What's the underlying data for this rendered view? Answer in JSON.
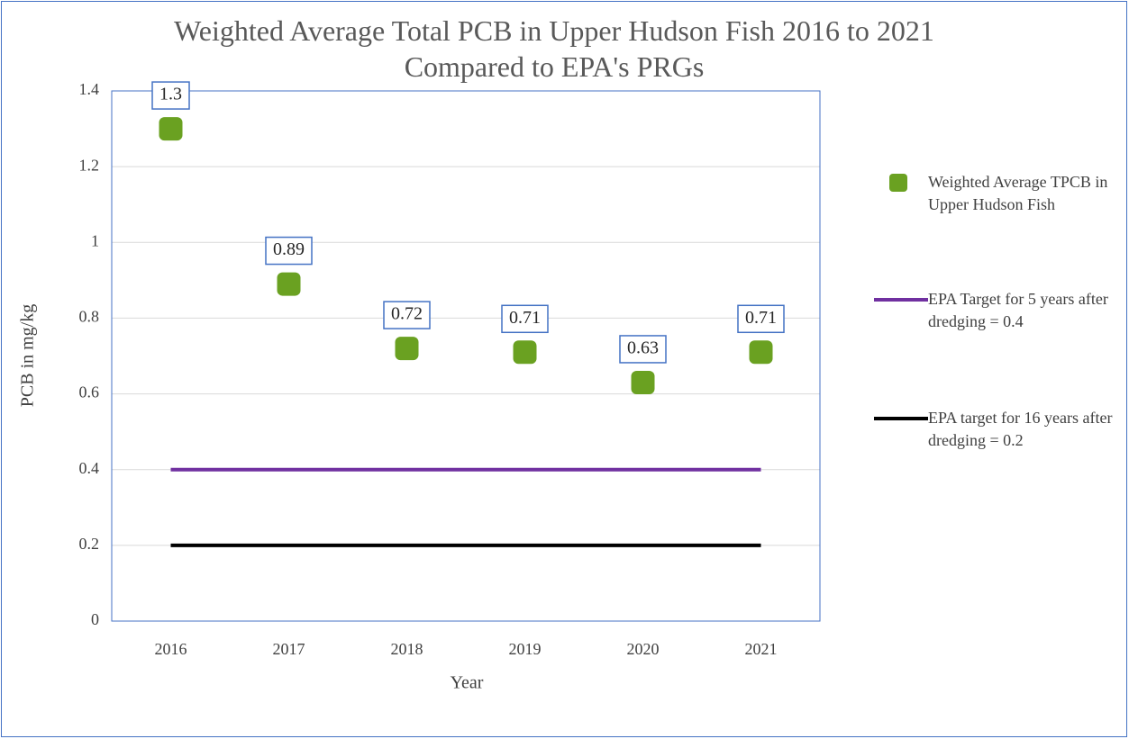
{
  "chart_data": {
    "type": "scatter",
    "title": "Weighted Average Total PCB in Upper Hudson Fish 2016 to 2021 Compared to EPA's PRGs",
    "x_label": "Year",
    "y_label": "PCB in mg/kg",
    "categories": [
      "2016",
      "2017",
      "2018",
      "2019",
      "2020",
      "2021"
    ],
    "series": [
      {
        "name": "Weighted Average TPCB in Upper Hudson Fish",
        "type": "scatter",
        "color": "#6aa121",
        "values": [
          1.3,
          0.89,
          0.72,
          0.71,
          0.63,
          0.71
        ]
      },
      {
        "name": "EPA Target for 5 years after dredging = 0.4",
        "type": "line",
        "color": "#7030a0",
        "values": [
          0.4,
          0.4,
          0.4,
          0.4,
          0.4,
          0.4
        ]
      },
      {
        "name": "EPA target for 16 years after dredging = 0.2",
        "type": "line",
        "color": "#000000",
        "values": [
          0.2,
          0.2,
          0.2,
          0.2,
          0.2,
          0.2
        ]
      }
    ],
    "ylim": [
      0,
      1.4
    ],
    "yticks": [
      0,
      0.2,
      0.4,
      0.6,
      0.8,
      1,
      1.2,
      1.4
    ],
    "grid": true,
    "legend": "right",
    "data_labels": true
  }
}
